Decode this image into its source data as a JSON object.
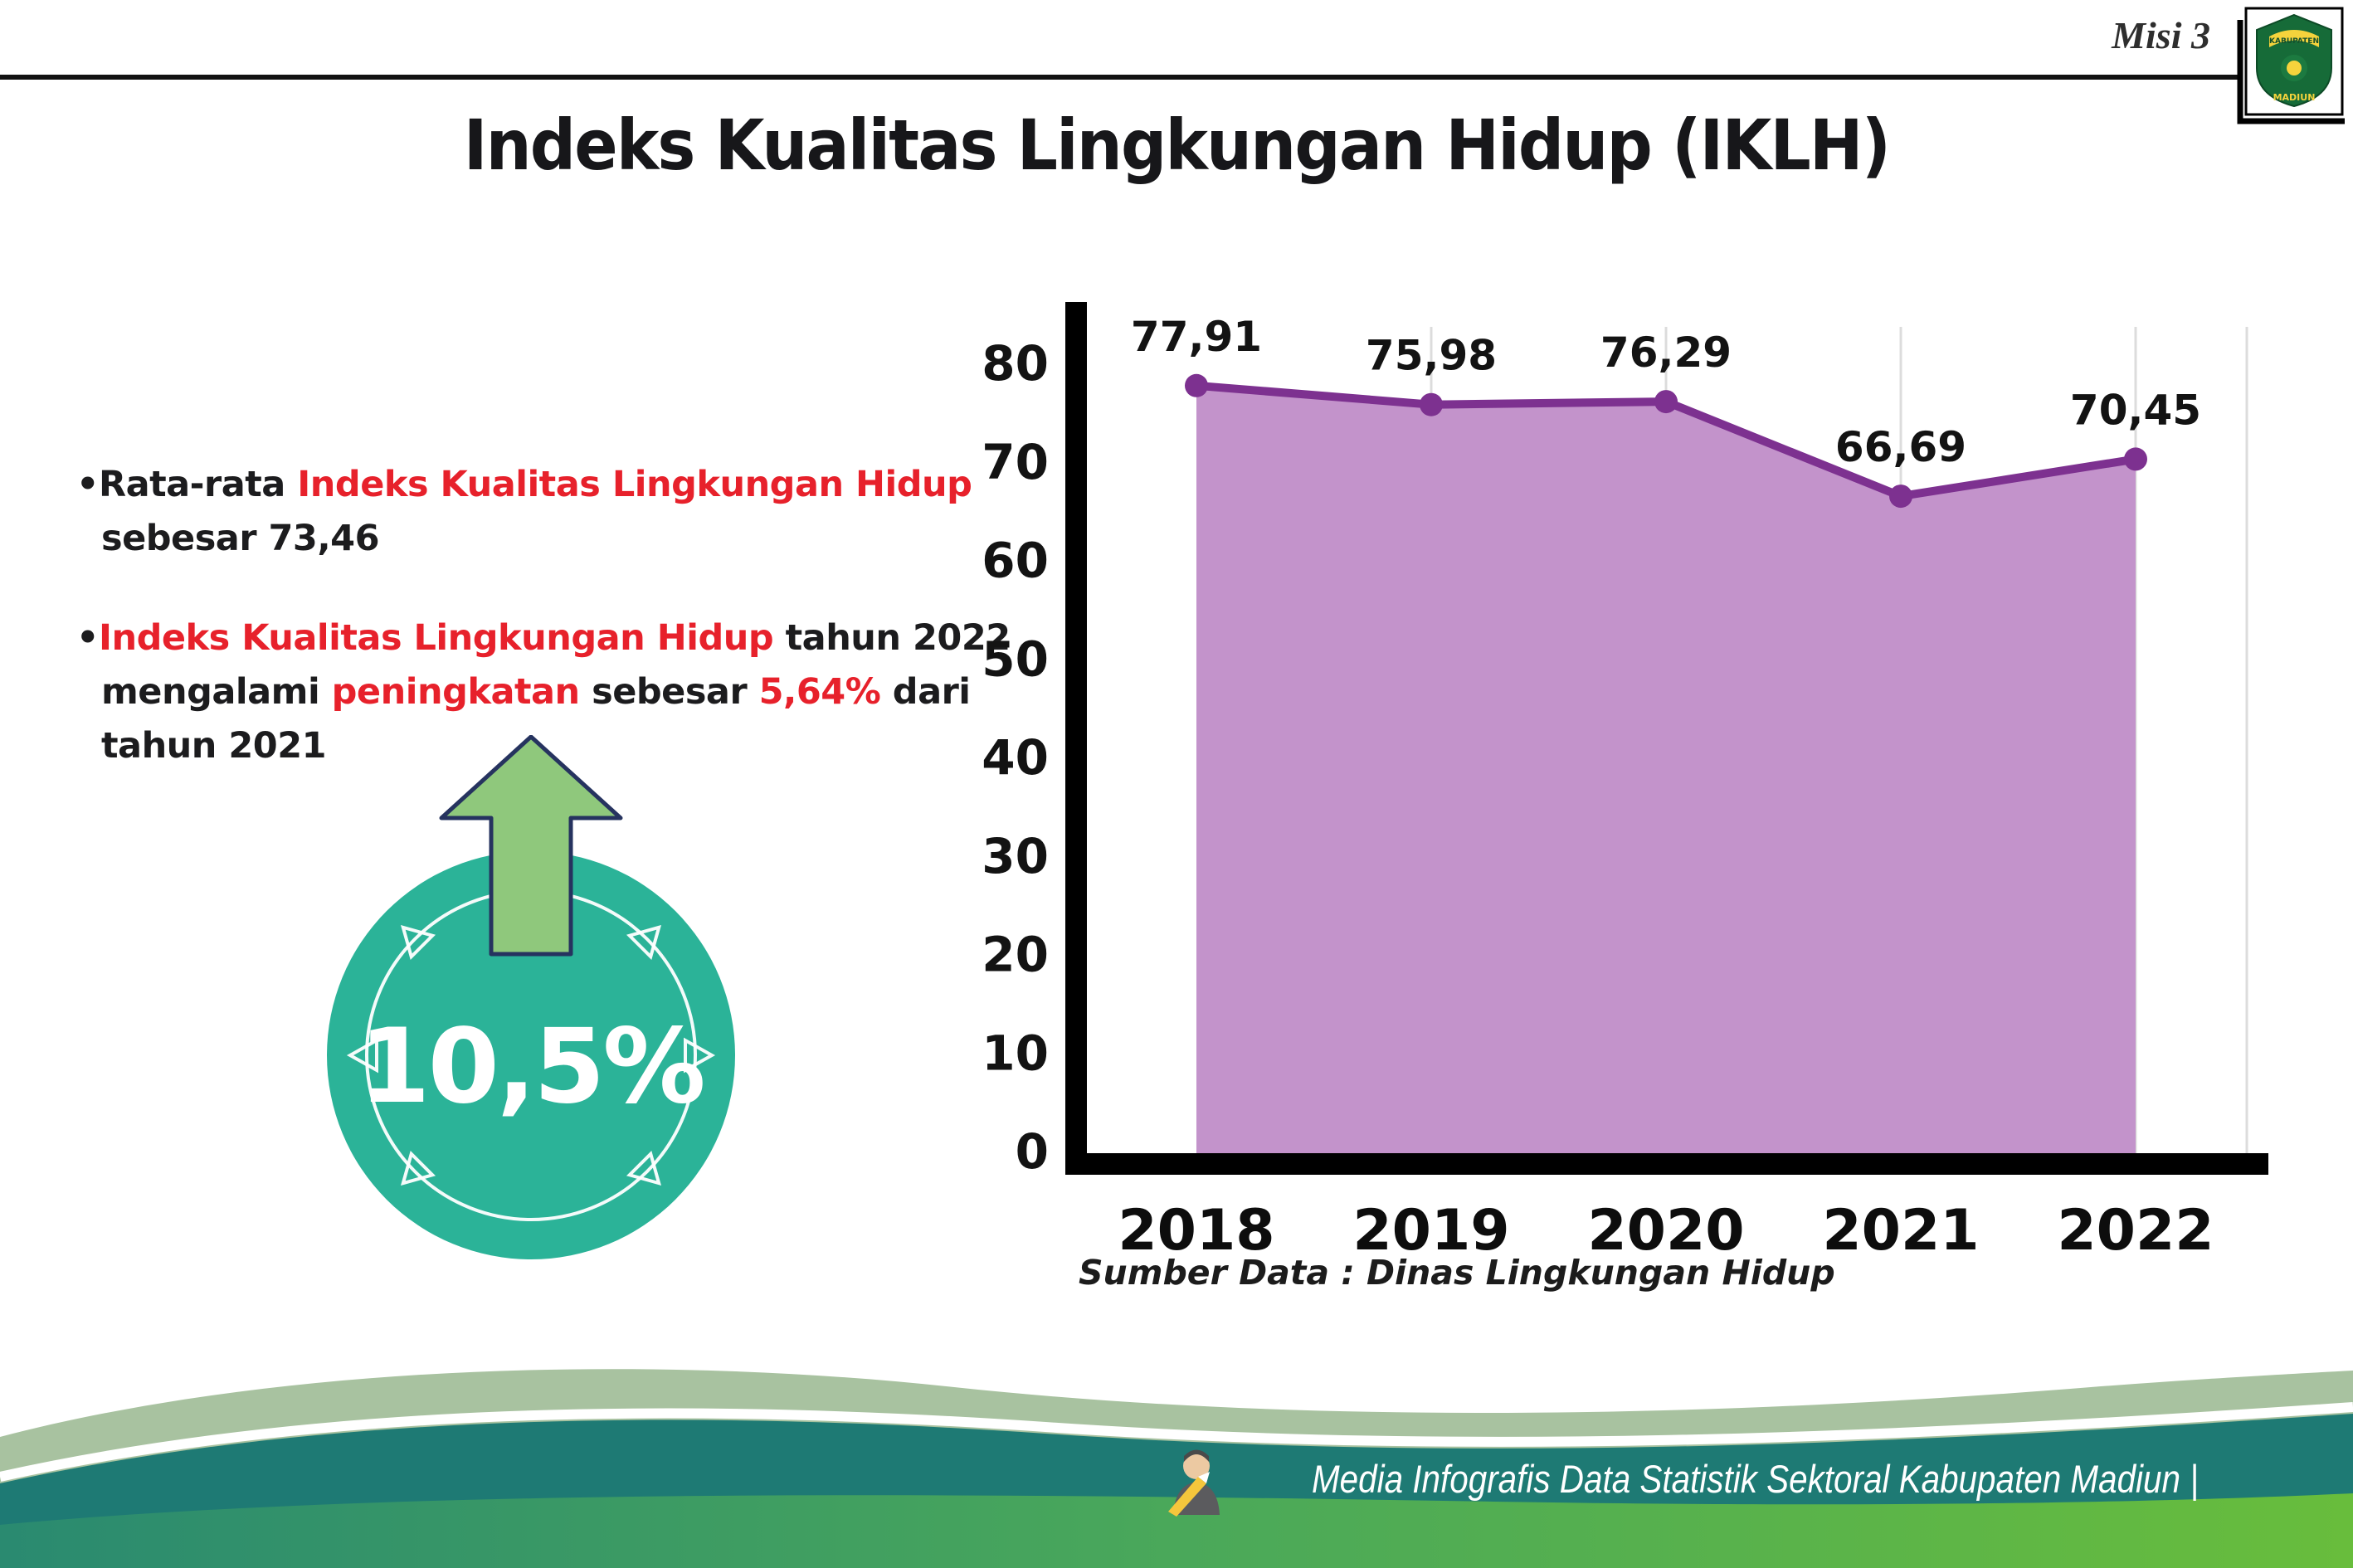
{
  "header": {
    "misi_label": "Misi 3",
    "title": "Indeks Kualitas Lingkungan Hidup (IKLH)",
    "logo": {
      "top_text": "KABUPATEN",
      "bottom_text": "MADIUN"
    }
  },
  "bullets": {
    "marker": "•",
    "b1": [
      {
        "text": "Rata-rata "
      },
      {
        "text": "Indeks Kualitas Lingkungan Hidup"
      },
      {
        "text": "sebesar 73,46"
      }
    ],
    "b2": [
      {
        "text": "Indeks Kualitas Lingkungan Hidup"
      },
      {
        "text": " tahun 2022"
      },
      {
        "text": "mengalami "
      },
      {
        "text": "peningkatan"
      },
      {
        "text": " sebesar "
      },
      {
        "text": "5,64%"
      },
      {
        "text": " dari"
      },
      {
        "text": "tahun 2021"
      }
    ]
  },
  "badge": {
    "value": "10,5%"
  },
  "chart_data": {
    "type": "area",
    "title": "Indeks Kualitas Lingkungan Hidup (IKLH)",
    "categories": [
      "2018",
      "2019",
      "2020",
      "2021",
      "2022"
    ],
    "values": [
      77.91,
      75.98,
      76.29,
      66.69,
      70.45
    ],
    "value_labels": [
      "77,91",
      "75,98",
      "76,29",
      "66,69",
      "70,45"
    ],
    "ylim": [
      0,
      80
    ],
    "yticks": [
      0,
      10,
      20,
      30,
      40,
      50,
      60,
      70,
      80
    ],
    "grid": "vertical-light",
    "legend": "none",
    "line_color": "#7d3190",
    "fill_color": "#c393cb",
    "source": "Sumber Data : Dinas Lingkungan Hidup"
  },
  "footer": {
    "credit": "Media Infografis Data Statistik Sektoral Kabupaten Madiun |"
  },
  "colors": {
    "accent_red": "#e7212b",
    "badge_teal": "#2bb398",
    "arrow_green": "#8fc87c",
    "wave_sage": "#a8c2a0",
    "wave_teal": "#1e7a74",
    "wave_green": "#68bd3c"
  }
}
